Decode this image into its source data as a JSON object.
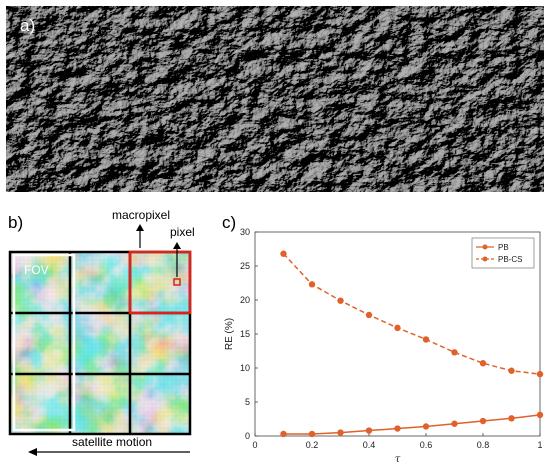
{
  "panel_a": {
    "label": "a)"
  },
  "panel_b": {
    "label": "b)",
    "fov_label": "FOV",
    "macropixel_label": "macropixel",
    "pixel_label": "pixel",
    "motion_label": "satellite motion",
    "colors": {
      "low": "#1f3fae",
      "mid": "#4fb6d6",
      "high": "#f2d52a",
      "grid": "#000000",
      "fov": "#ffffff",
      "macropixel": "#e0201b"
    }
  },
  "panel_c": {
    "label": "c)",
    "chart_data": {
      "type": "line",
      "xlabel": "τ",
      "ylabel": "RE (%)",
      "xlim": [
        0,
        1
      ],
      "ylim": [
        0,
        30
      ],
      "xticks": [
        "0",
        "0.2",
        "0.4",
        "0.6",
        "0.8",
        "1"
      ],
      "yticks": [
        "0",
        "5",
        "10",
        "15",
        "20",
        "25",
        "30"
      ],
      "grid": false,
      "legend": "top-right",
      "color": "#e0612a",
      "x": [
        0.1,
        0.2,
        0.3,
        0.4,
        0.5,
        0.6,
        0.7,
        0.8,
        0.9,
        1.0
      ],
      "series": [
        {
          "name": "PB",
          "style": "solid",
          "values": [
            0.3,
            0.3,
            0.5,
            0.8,
            1.1,
            1.4,
            1.8,
            2.2,
            2.6,
            3.1
          ]
        },
        {
          "name": "PB-CS",
          "style": "dashed",
          "values": [
            26.8,
            22.3,
            19.9,
            17.8,
            15.9,
            14.2,
            12.3,
            10.7,
            9.6,
            9.1
          ]
        }
      ]
    }
  }
}
